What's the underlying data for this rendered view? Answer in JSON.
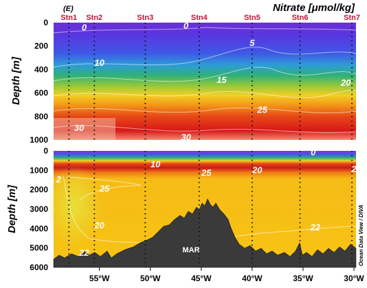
{
  "panel_label": "(E)",
  "title": "Nitrate [μmol/kg]",
  "credit": "Ocean Data View / DIVA",
  "ridge_label": "MAR",
  "colors": {
    "station": "#c8102e",
    "terrain": "#3a3a3a",
    "low": "#6a2fd6",
    "high": "#d81818"
  },
  "chart_data": {
    "type": "heatmap",
    "variable": "Nitrate",
    "units": "μmol/kg",
    "stations": [
      {
        "name": "Stn1",
        "lon": -58.0
      },
      {
        "name": "Stn2",
        "lon": -55.5
      },
      {
        "name": "Stn3",
        "lon": -50.5
      },
      {
        "name": "Stn4",
        "lon": -45.2
      },
      {
        "name": "Stn5",
        "lon": -40.0
      },
      {
        "name": "Stn6",
        "lon": -35.3
      },
      {
        "name": "Stn7",
        "lon": -30.2
      }
    ],
    "x_range": [
      -59.5,
      -29.8
    ],
    "x_ticks": [
      {
        "value": -55,
        "label": "55°W"
      },
      {
        "value": -50,
        "label": "50°W"
      },
      {
        "value": -45,
        "label": "45°W"
      },
      {
        "value": -40,
        "label": "40°W"
      },
      {
        "value": -35,
        "label": "35°W"
      },
      {
        "value": -30,
        "label": "30°W"
      }
    ],
    "panels": [
      {
        "name": "upper",
        "ylabel": "Depth [m]",
        "ylim": [
          0,
          1000
        ],
        "yticks": [
          "0",
          "200",
          "400",
          "600",
          "800",
          "1000"
        ],
        "contours": [
          {
            "label": "0",
            "lon": -56.5,
            "depth": 45
          },
          {
            "label": "0",
            "lon": -46.5,
            "depth": 30
          },
          {
            "label": "5",
            "lon": -40.0,
            "depth": 175
          },
          {
            "label": "10",
            "lon": -55.0,
            "depth": 345
          },
          {
            "label": "15",
            "lon": -43.0,
            "depth": 490
          },
          {
            "label": "20",
            "lon": -30.8,
            "depth": 515
          },
          {
            "label": "25",
            "lon": -39.0,
            "depth": 745
          },
          {
            "label": "30",
            "lon": -57.0,
            "depth": 900
          },
          {
            "label": "30",
            "lon": -46.5,
            "depth": 980
          }
        ]
      },
      {
        "name": "lower",
        "ylabel": "Depth [m]",
        "ylim": [
          0,
          6000
        ],
        "yticks": [
          "0",
          "1000",
          "2000",
          "3000",
          "4000",
          "5000",
          "6000"
        ],
        "contours": [
          {
            "label": "0",
            "lon": -34.0,
            "depth": 80
          },
          {
            "label": "10",
            "lon": -49.5,
            "depth": 700
          },
          {
            "label": "25",
            "lon": -44.5,
            "depth": 1150
          },
          {
            "label": "20",
            "lon": -39.5,
            "depth": 1000
          },
          {
            "label": "2",
            "lon": -30.0,
            "depth": 950
          },
          {
            "label": "2",
            "lon": -59.0,
            "depth": 1480
          },
          {
            "label": "25",
            "lon": -54.5,
            "depth": 1950
          },
          {
            "label": "20",
            "lon": -55.0,
            "depth": 3850
          },
          {
            "label": "22",
            "lon": -33.8,
            "depth": 3950
          },
          {
            "label": "22",
            "lon": -56.5,
            "depth": 5250
          }
        ]
      }
    ]
  }
}
